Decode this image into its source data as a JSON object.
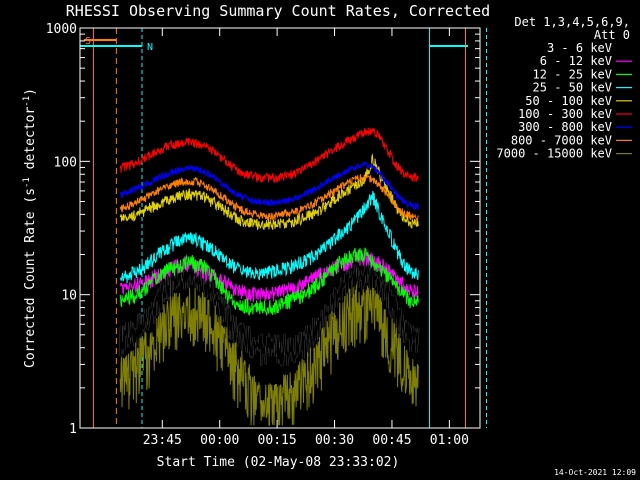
{
  "chart_data": {
    "type": "line",
    "title": "RHESSI Observing Summary Count Rates, Corrected",
    "xlabel": "Start Time (02-May-08 23:33:02)",
    "ylabel": "Corrected Count Rate (s-1 detector-1)",
    "ylabel_parts": {
      "a": "Corrected Count Rate (s",
      "b": "-1",
      "c": " detector",
      "d": "-1",
      "e": ")"
    },
    "y_scale": "log",
    "ylim": [
      1,
      1000
    ],
    "xlim_minutes": [
      23.5,
      98
    ],
    "x_ticks": [
      {
        "minute": 45,
        "label": "23:45"
      },
      {
        "minute": 60,
        "label": "00:00"
      },
      {
        "minute": 75,
        "label": "00:15"
      },
      {
        "minute": 90,
        "label": "00:30"
      },
      {
        "minute": 105,
        "label": "00:45"
      },
      {
        "minute": 120,
        "label": "01:00"
      }
    ],
    "y_ticks": [
      {
        "value": 1,
        "label": "1"
      },
      {
        "value": 10,
        "label": "10"
      },
      {
        "value": 100,
        "label": "100"
      },
      {
        "value": 1000,
        "label": "1000"
      }
    ],
    "legend_header": [
      "Det 1,3,4,5,6,9,",
      "Att 0"
    ],
    "legend_position": "right",
    "series": [
      {
        "name": "3 - 6 keV",
        "color": "#000000",
        "x": [
          34,
          36,
          38,
          40,
          42,
          44,
          46,
          48,
          50,
          52,
          54,
          56,
          58,
          60,
          62,
          64,
          66,
          68,
          70,
          72,
          74,
          76,
          78,
          80,
          82,
          84,
          86,
          88,
          90,
          92,
          94,
          96,
          98,
          100,
          102,
          104,
          106,
          108,
          110,
          112
        ],
        "y": [
          4.5,
          5,
          5.5,
          6,
          7,
          9,
          11,
          13,
          14,
          15,
          14,
          13,
          11,
          9,
          7,
          5.5,
          5,
          4.5,
          4,
          4,
          4,
          4,
          4,
          4,
          4.5,
          5,
          6,
          7.5,
          9,
          11,
          13,
          14,
          15,
          14,
          12,
          10,
          8,
          6,
          5,
          4.5
        ]
      },
      {
        "name": "6 - 12 keV",
        "color": "#ff00ff",
        "x": [
          34,
          36,
          38,
          40,
          42,
          44,
          46,
          48,
          50,
          52,
          54,
          56,
          58,
          60,
          62,
          64,
          66,
          68,
          70,
          72,
          74,
          76,
          78,
          80,
          82,
          84,
          86,
          88,
          90,
          92,
          94,
          96,
          98,
          100,
          102,
          104,
          106,
          108,
          110,
          112
        ],
        "y": [
          11,
          11.5,
          12,
          12,
          13,
          14,
          15,
          16,
          17,
          17,
          16,
          15,
          14,
          13,
          12,
          11,
          10.5,
          10,
          10,
          10,
          10,
          10.5,
          11,
          11.5,
          12,
          13,
          14,
          15,
          16,
          17,
          18,
          19,
          19,
          18,
          17,
          15,
          13,
          12,
          11,
          11
        ]
      },
      {
        "name": "12 - 25 keV",
        "color": "#00ff00",
        "x": [
          34,
          36,
          38,
          40,
          42,
          44,
          46,
          48,
          50,
          52,
          54,
          56,
          58,
          60,
          62,
          64,
          66,
          68,
          70,
          72,
          74,
          76,
          78,
          80,
          82,
          84,
          86,
          88,
          90,
          92,
          94,
          96,
          98,
          100,
          102,
          104,
          106,
          108,
          110,
          112
        ],
        "y": [
          9,
          9.5,
          10,
          11,
          12,
          14,
          15,
          16,
          17,
          18,
          17,
          16,
          14,
          12,
          10,
          9,
          8.5,
          8,
          8,
          8,
          8,
          8.5,
          9,
          9.5,
          10,
          11,
          12.5,
          14,
          16,
          18,
          19,
          20,
          20,
          18,
          16,
          14,
          12,
          10,
          9,
          9
        ]
      },
      {
        "name": "25 - 50 keV",
        "color": "#00ffff",
        "x": [
          34,
          36,
          38,
          40,
          42,
          44,
          46,
          48,
          50,
          52,
          54,
          56,
          58,
          60,
          62,
          64,
          66,
          68,
          70,
          72,
          74,
          76,
          78,
          80,
          82,
          84,
          86,
          88,
          90,
          92,
          94,
          96,
          98,
          100,
          102,
          104,
          106,
          108,
          110,
          112
        ],
        "y": [
          13,
          14,
          15,
          16,
          18,
          20,
          22,
          24,
          26,
          27,
          26,
          24,
          22,
          20,
          18,
          16,
          15,
          14.5,
          14.5,
          14.5,
          15,
          15.5,
          16,
          17,
          18,
          19,
          21,
          23,
          26,
          30,
          33,
          38,
          45,
          55,
          40,
          30,
          22,
          17,
          15,
          14
        ]
      },
      {
        "name": "50 - 100 keV",
        "color": "#e0d000",
        "x": [
          34,
          36,
          38,
          40,
          42,
          44,
          46,
          48,
          50,
          52,
          54,
          56,
          58,
          60,
          62,
          64,
          66,
          68,
          70,
          72,
          74,
          76,
          78,
          80,
          82,
          84,
          86,
          88,
          90,
          92,
          94,
          96,
          98,
          100,
          102,
          104,
          106,
          108,
          110,
          112
        ],
        "y": [
          37,
          38,
          40,
          42,
          45,
          48,
          51,
          54,
          56,
          57,
          56,
          54,
          50,
          46,
          42,
          38,
          36,
          35,
          34,
          34,
          34,
          34.5,
          35,
          36,
          38,
          40,
          43,
          47,
          52,
          57,
          62,
          68,
          75,
          105,
          78,
          60,
          46,
          38,
          35,
          34
        ]
      },
      {
        "name": "100 - 300 keV",
        "color": "#ff0000",
        "x": [
          34,
          36,
          38,
          40,
          42,
          44,
          46,
          48,
          50,
          52,
          54,
          56,
          58,
          60,
          62,
          64,
          66,
          68,
          70,
          72,
          74,
          76,
          78,
          80,
          82,
          84,
          86,
          88,
          90,
          92,
          94,
          96,
          98,
          100,
          102,
          104,
          106,
          108,
          110,
          112
        ],
        "y": [
          88,
          92,
          98,
          105,
          112,
          120,
          128,
          134,
          138,
          140,
          137,
          130,
          120,
          108,
          97,
          88,
          82,
          78,
          76,
          75,
          75,
          76,
          78,
          82,
          88,
          95,
          104,
          114,
          124,
          134,
          144,
          154,
          165,
          175,
          150,
          120,
          95,
          82,
          76,
          75
        ]
      },
      {
        "name": "300 - 800 keV",
        "color": "#0000ff",
        "x": [
          34,
          36,
          38,
          40,
          42,
          44,
          46,
          48,
          50,
          52,
          54,
          56,
          58,
          60,
          62,
          64,
          66,
          68,
          70,
          72,
          74,
          76,
          78,
          80,
          82,
          84,
          86,
          88,
          90,
          92,
          94,
          96,
          98,
          100,
          102,
          104,
          106,
          108,
          110,
          112
        ],
        "y": [
          56,
          58,
          62,
          66,
          70,
          75,
          80,
          84,
          87,
          89,
          88,
          84,
          78,
          71,
          64,
          58,
          54,
          51,
          50,
          49,
          49,
          50,
          51,
          53,
          56,
          60,
          65,
          70,
          76,
          82,
          88,
          92,
          94,
          90,
          80,
          68,
          57,
          50,
          47,
          46
        ]
      },
      {
        "name": "800 - 7000 keV",
        "color": "#ff8000",
        "x": [
          34,
          36,
          38,
          40,
          42,
          44,
          46,
          48,
          50,
          52,
          54,
          56,
          58,
          60,
          62,
          64,
          66,
          68,
          70,
          72,
          74,
          76,
          78,
          80,
          82,
          84,
          86,
          88,
          90,
          92,
          94,
          96,
          98,
          100,
          102,
          104,
          106,
          108,
          110,
          112
        ],
        "y": [
          44,
          46,
          49,
          52,
          56,
          60,
          64,
          67,
          70,
          71,
          70,
          67,
          62,
          56,
          51,
          46,
          43,
          41,
          40,
          39,
          39,
          40,
          41,
          42,
          44,
          47,
          51,
          55,
          60,
          65,
          70,
          74,
          76,
          73,
          65,
          55,
          46,
          41,
          39,
          38
        ]
      },
      {
        "name": "7000 - 15000 keV",
        "color": "#808000",
        "x": [
          34,
          36,
          38,
          40,
          42,
          44,
          46,
          48,
          50,
          52,
          54,
          56,
          58,
          60,
          62,
          64,
          66,
          68,
          70,
          72,
          74,
          76,
          78,
          80,
          82,
          84,
          86,
          88,
          90,
          92,
          94,
          96,
          98,
          100,
          102,
          104,
          106,
          108,
          110,
          112
        ],
        "y": [
          2.5,
          2.5,
          3,
          3.5,
          4,
          5,
          6,
          7,
          7.5,
          8,
          7.5,
          7,
          6,
          5,
          4,
          3,
          2.5,
          2,
          1.6,
          1.5,
          1.5,
          1.6,
          1.8,
          2,
          2.3,
          2.8,
          3.5,
          4.5,
          5.5,
          6.5,
          7.5,
          8,
          8,
          7.5,
          6.5,
          5,
          4,
          3,
          2.5,
          2
        ]
      }
    ],
    "annotations": [
      {
        "label": "S",
        "color": "#ff8000"
      },
      {
        "label": "N",
        "color": "#00ffff"
      }
    ],
    "footer_date": "14-Oct-2021 12:09"
  }
}
